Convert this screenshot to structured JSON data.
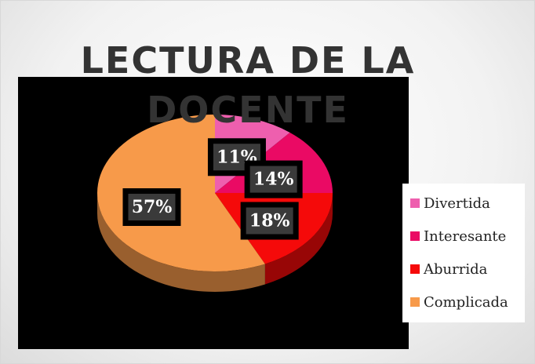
{
  "chart_data": {
    "type": "pie",
    "title": "LECTURA DE LA DOCENTE",
    "categories": [
      "Divertida",
      "Interesante",
      "Aburrida",
      "Complicada"
    ],
    "values": [
      11,
      14,
      18,
      57
    ],
    "value_labels": [
      "11%",
      "14%",
      "18%",
      "57%"
    ],
    "colors": [
      "#ee5fae",
      "#ea0a64",
      "#f50a0a",
      "#f79a4a"
    ],
    "legend": "right"
  }
}
